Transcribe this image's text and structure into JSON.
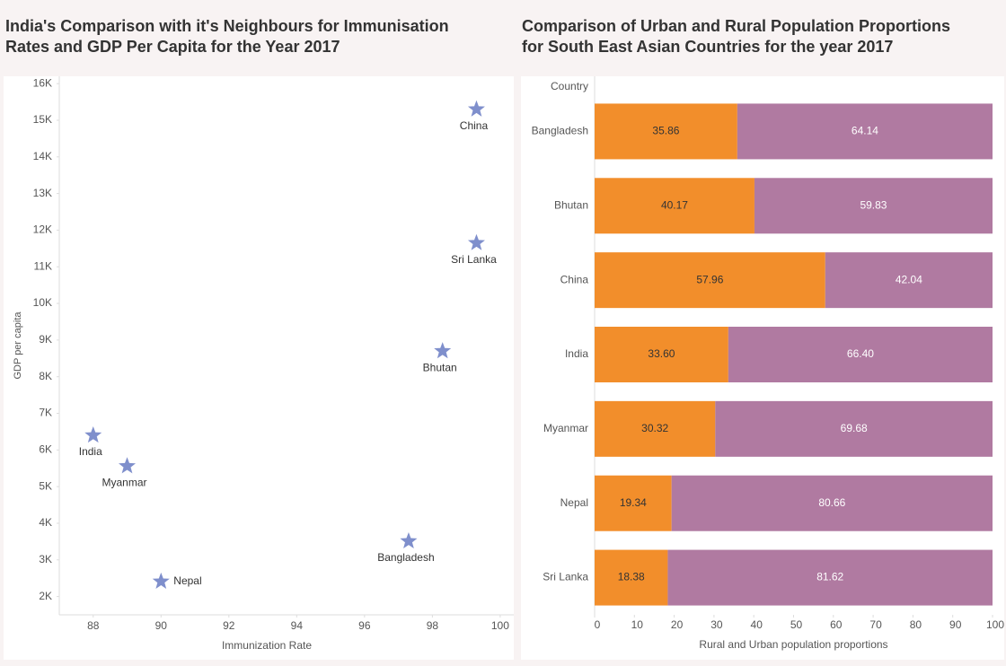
{
  "chart_data": [
    {
      "type": "scatter",
      "title": [
        "India's Comparison with it's Neighbours for Immunisation",
        "Rates and GDP Per Capita for the Year 2017"
      ],
      "x_label": "Immunization Rate",
      "y_label": "GDP per capita",
      "labels": [
        "India",
        "Myanmar",
        "Nepal",
        "Bangladesh",
        "Bhutan",
        "Sri Lanka",
        "China"
      ],
      "x": [
        88,
        89,
        90,
        97.3,
        98.3,
        99.3,
        99.3
      ],
      "values": [
        6400,
        5560,
        2410,
        3510,
        8700,
        11650,
        15300
      ],
      "color": "#7f8fcc",
      "xlim": [
        87,
        100.4
      ],
      "ylim": [
        1500,
        16200
      ],
      "xticks": [
        88,
        90,
        92,
        94,
        96,
        98,
        100
      ],
      "yticks": [
        {
          "value": 2000,
          "label": "2K"
        },
        {
          "value": 3000,
          "label": "3K"
        },
        {
          "value": 4000,
          "label": "4K"
        },
        {
          "value": 5000,
          "label": "5K"
        },
        {
          "value": 6000,
          "label": "6K"
        },
        {
          "value": 7000,
          "label": "7K"
        },
        {
          "value": 8000,
          "label": "8K"
        },
        {
          "value": 9000,
          "label": "9K"
        },
        {
          "value": 10000,
          "label": "10K"
        },
        {
          "value": 11000,
          "label": "11K"
        },
        {
          "value": 12000,
          "label": "12K"
        },
        {
          "value": 13000,
          "label": "13K"
        },
        {
          "value": 14000,
          "label": "14K"
        },
        {
          "value": 15000,
          "label": "15K"
        },
        {
          "value": 16000,
          "label": "16K"
        }
      ]
    },
    {
      "type": "stacked-bar",
      "title": [
        "Comparison of Urban and Rural Population Proportions",
        "for South East Asian Countries for the year 2017"
      ],
      "x_label": "Rural and Urban population proportions",
      "y_label": "Country",
      "categories": [
        "Bangladesh",
        "Bhutan",
        "China",
        "India",
        "Myanmar",
        "Nepal",
        "Sri Lanka"
      ],
      "series": [
        {
          "color": "#f28e2b",
          "values": [
            35.86,
            40.17,
            57.96,
            33.6,
            30.32,
            19.34,
            18.38
          ],
          "value_labels": [
            "35.86",
            "40.17",
            "57.96",
            "33.60",
            "30.32",
            "19.34",
            "18.38"
          ]
        },
        {
          "color": "#b07aa1",
          "values": [
            64.14,
            59.83,
            42.04,
            66.4,
            69.68,
            80.66,
            81.62
          ],
          "value_labels": [
            "64.14",
            "59.83",
            "42.04",
            "66.40",
            "69.68",
            "80.66",
            "81.62"
          ]
        }
      ],
      "xlim": [
        0,
        100
      ],
      "xticks": [
        0,
        10,
        20,
        30,
        40,
        50,
        60,
        70,
        80,
        90,
        100
      ]
    }
  ]
}
